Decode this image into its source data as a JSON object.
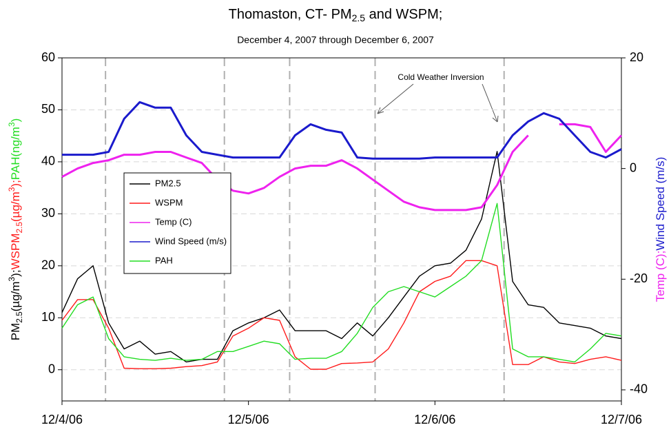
{
  "chart_data": {
    "type": "line",
    "title_parts": [
      {
        "text": "Thomaston, CT- PM"
      },
      {
        "text": "2.5",
        "script": "sub"
      },
      {
        "text": " and WSPM;"
      }
    ],
    "subtitle": "December 4, 2007 through December 6, 2007",
    "ylabel_parts": [
      {
        "text": "PM",
        "color": "#000000"
      },
      {
        "text": "2.5",
        "color": "#000000",
        "script": "sub"
      },
      {
        "text": "(µg/m",
        "color": "#000000"
      },
      {
        "text": "3",
        "color": "#000000",
        "script": "sup"
      },
      {
        "text": ");",
        "color": "#000000"
      },
      {
        "text": "WSPM",
        "color": "#ff1a1a"
      },
      {
        "text": "2.5",
        "color": "#ff1a1a",
        "script": "sub"
      },
      {
        "text": "(µg/m",
        "color": "#ff1a1a"
      },
      {
        "text": "3",
        "color": "#ff1a1a",
        "script": "sup"
      },
      {
        "text": ");",
        "color": "#ff1a1a"
      },
      {
        "text": "PAH(ng/m",
        "color": "#22dd22"
      },
      {
        "text": "3",
        "color": "#22dd22",
        "script": "sup"
      },
      {
        "text": ")",
        "color": "#22dd22"
      }
    ],
    "y2label_parts": [
      {
        "text": "Temp (C);",
        "color": "#ee22ee"
      },
      {
        "text": "Wind Speed (m/s)",
        "color": "#1a1acc"
      }
    ],
    "annotation": "Cold Weather Inversion",
    "x": [
      0,
      2,
      4,
      6,
      8,
      10,
      12,
      14,
      16,
      18,
      20,
      22,
      24,
      26,
      28,
      30,
      32,
      34,
      36,
      38,
      40,
      42,
      44,
      46,
      48,
      50,
      52,
      54,
      56,
      58,
      60,
      62,
      64,
      66,
      68,
      70,
      72
    ],
    "xlim": [
      0,
      72
    ],
    "xticks": [
      {
        "value": 0,
        "label": "12/4/06"
      },
      {
        "value": 24,
        "label": "12/5/06"
      },
      {
        "value": 48,
        "label": "12/6/06"
      },
      {
        "value": 72,
        "label": "12/7/06"
      }
    ],
    "ylim": [
      -6,
      60
    ],
    "yticks": [
      0,
      10,
      20,
      30,
      40,
      50,
      60
    ],
    "y2lim": [
      -42,
      20
    ],
    "y2ticks": [
      -40,
      -20,
      0,
      20
    ],
    "vlines": [
      5.6,
      20.9,
      29.3,
      40.3,
      56.9
    ],
    "grid": true,
    "legend": "center left",
    "series": [
      {
        "name": "PM2.5",
        "color": "#000000",
        "values": [
          11,
          17.5,
          20,
          9,
          4,
          5.5,
          3,
          3.5,
          1.5,
          2,
          2,
          7.5,
          9,
          10,
          11.5,
          7.5,
          7.5,
          7.5,
          6,
          9,
          6.5,
          10,
          14,
          18,
          20,
          20.5,
          23,
          29,
          42,
          17,
          12.5,
          12,
          9,
          8.5,
          8,
          6.5,
          6
        ]
      },
      {
        "name": "WSPM",
        "color": "#ff1a1a",
        "values": [
          9.5,
          13.5,
          13.5,
          8,
          0.3,
          0.2,
          0.2,
          0.3,
          0.6,
          0.8,
          1.5,
          6.5,
          8,
          10,
          9.5,
          2.5,
          0.1,
          0.1,
          1.2,
          1.3,
          1.5,
          4,
          9,
          15,
          17,
          18,
          21,
          21,
          20,
          1,
          1,
          2.5,
          1.5,
          1.2,
          2,
          2.5,
          1.8
        ]
      },
      {
        "name": "Temp (C)",
        "color": "#ee22ee",
        "axis": "y2",
        "values": [
          -1.5,
          0,
          1,
          1.5,
          2.5,
          2.5,
          3,
          3,
          2,
          1,
          -2,
          -4,
          -4.5,
          -3.5,
          -1.5,
          0,
          0.5,
          0.5,
          1.5,
          0,
          -2,
          -4,
          -6,
          -7,
          -7.5,
          -7.5,
          -7.5,
          -7,
          -3,
          3,
          6,
          null,
          8,
          8,
          7.5,
          3,
          6
        ]
      },
      {
        "name": "Wind Speed (m/s)",
        "color": "#1a1acc",
        "axis": "y2",
        "values": [
          2.5,
          2.5,
          2.5,
          3,
          9,
          12,
          11,
          11,
          6,
          3,
          2.5,
          2,
          2,
          2,
          2,
          6,
          8,
          7,
          6.5,
          2,
          1.8,
          1.8,
          1.8,
          1.8,
          2,
          2,
          2,
          2,
          2,
          6,
          8.5,
          10,
          9,
          6,
          3,
          2,
          3.5
        ]
      },
      {
        "name": "PAH",
        "color": "#22dd22",
        "values": [
          8,
          12.5,
          14,
          6,
          2.5,
          2,
          1.8,
          2.2,
          1.8,
          2,
          3.5,
          3.5,
          4.5,
          5.5,
          5,
          2,
          2.2,
          2.2,
          3.5,
          7,
          12,
          15,
          16,
          15,
          14,
          16,
          18,
          21,
          32,
          4,
          2.5,
          2.5,
          2,
          1.5,
          4,
          7,
          6.5
        ]
      }
    ]
  }
}
